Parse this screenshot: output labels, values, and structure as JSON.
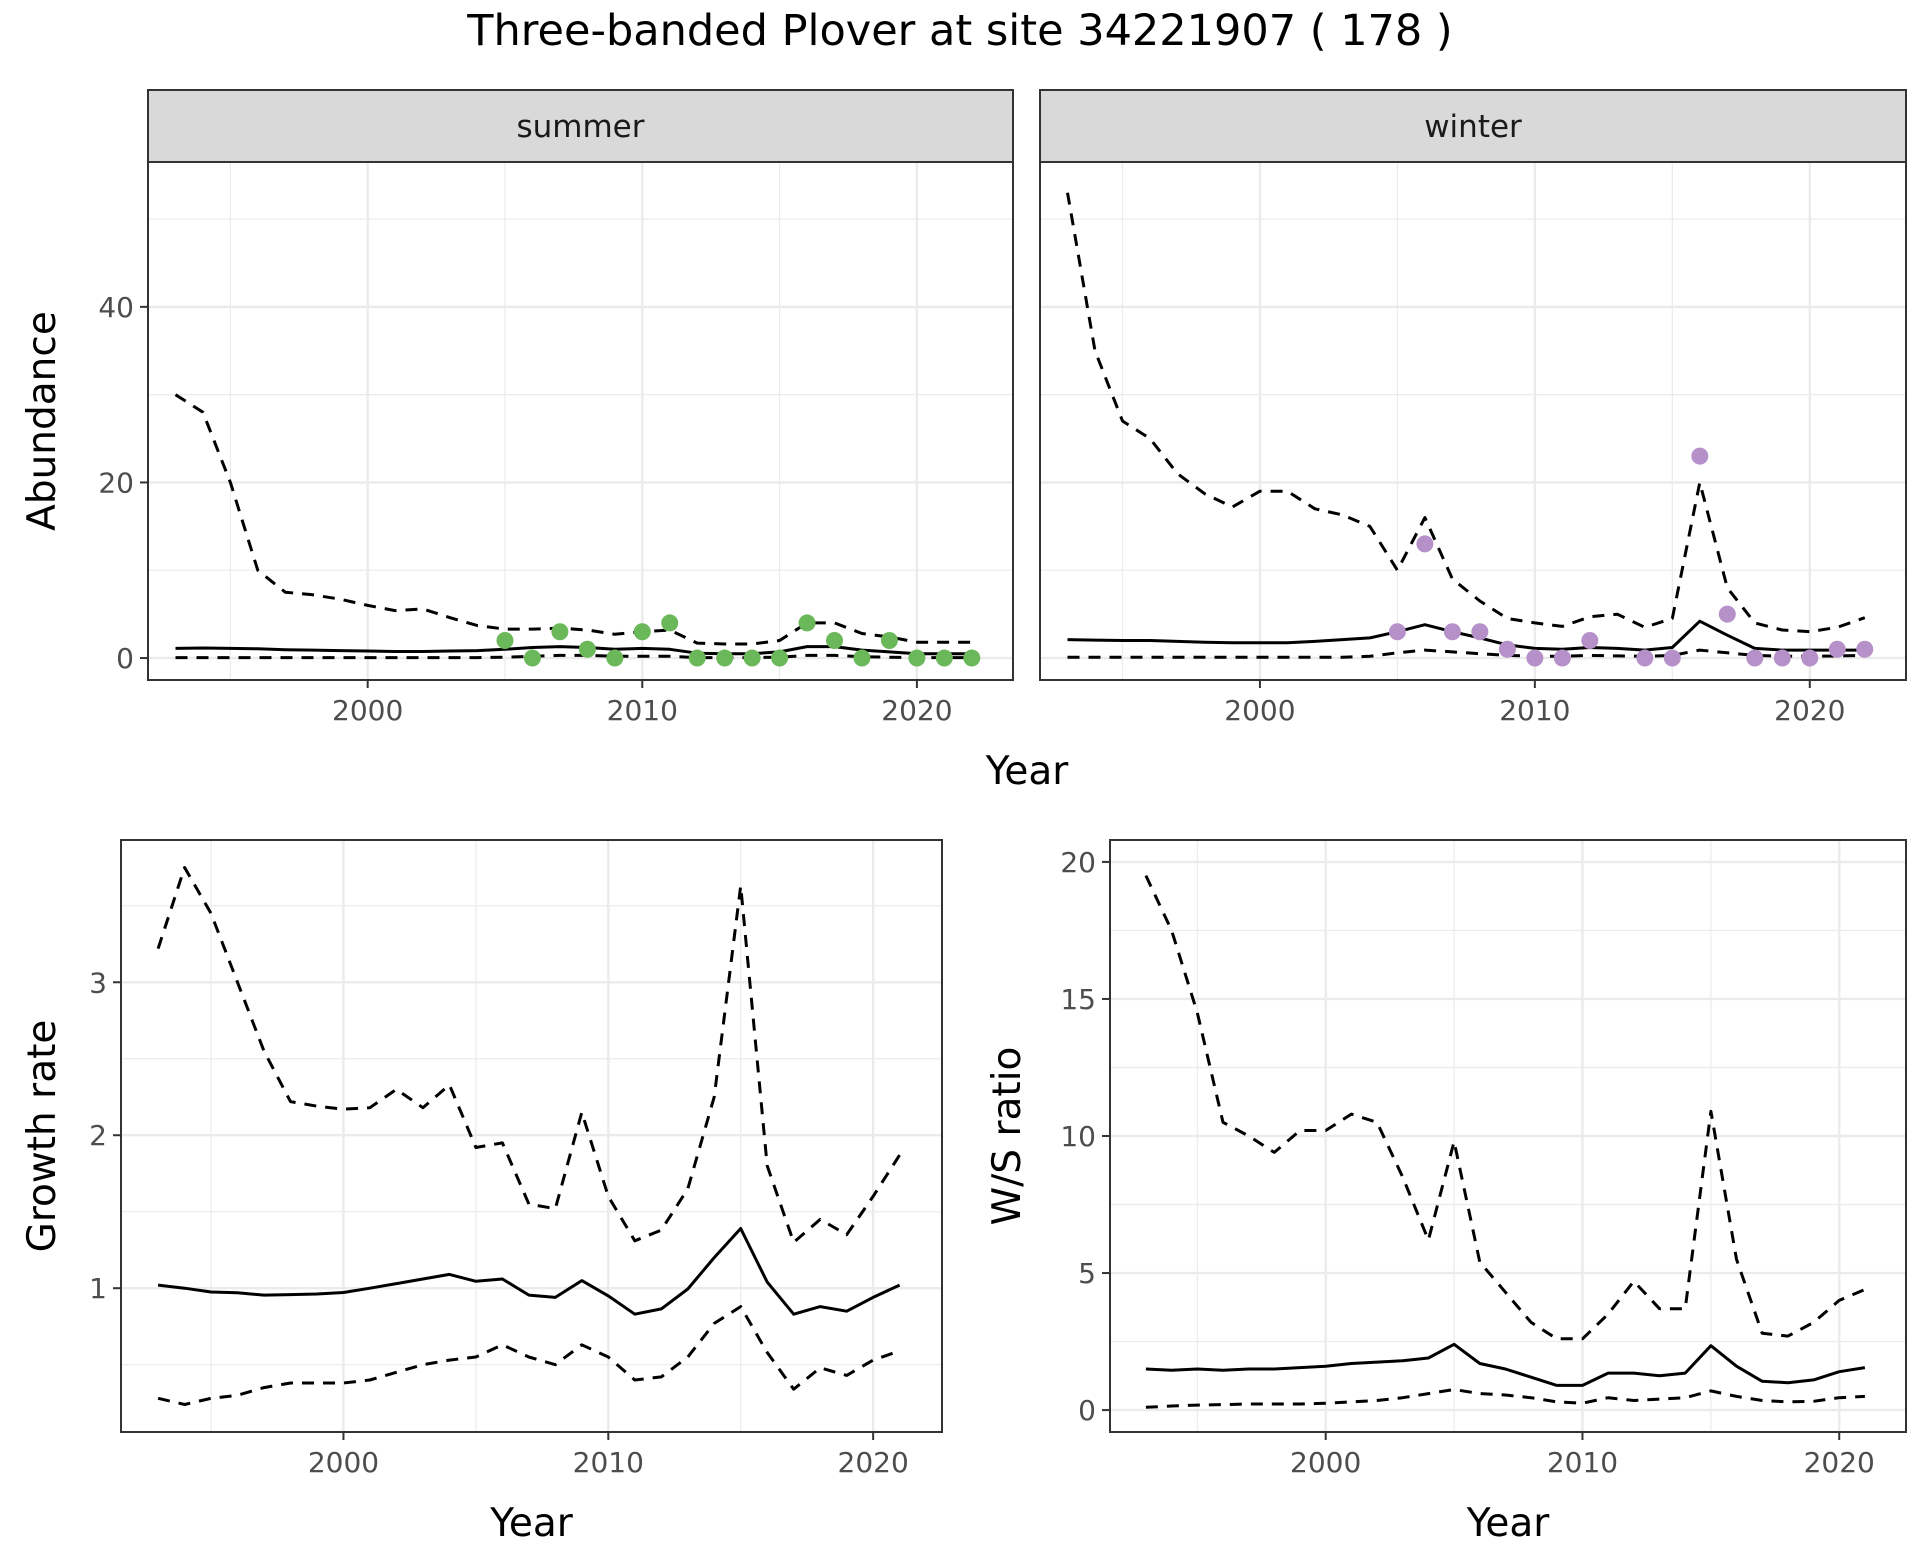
{
  "figure": {
    "title": "Three-banded Plover at site 34221907 ( 178 )",
    "colors": {
      "summer_points": "#6ab859",
      "winter_points": "#b690c8",
      "lines": "#000000",
      "strip": "#d9d9d9",
      "grid": "#ebebeb"
    }
  },
  "chart_data": [
    {
      "type": "line",
      "facet": "summer",
      "xlabel": "Year",
      "ylabel": "Abundance",
      "xlim": [
        1992,
        2023.5
      ],
      "ylim": [
        -2.5,
        56.5
      ],
      "xticks": [
        2000,
        2010,
        2020
      ],
      "yticks": [
        0,
        20,
        40
      ],
      "series": [
        {
          "style": "dashed",
          "x": [
            1993,
            1994,
            1995,
            1996,
            1997,
            1998,
            1999,
            2000,
            2001,
            2002,
            2003,
            2004,
            2005,
            2006,
            2007,
            2008,
            2009,
            2010,
            2011,
            2012,
            2013,
            2014,
            2015,
            2016,
            2017,
            2018,
            2019,
            2020,
            2021,
            2022
          ],
          "values": [
            30,
            28,
            20,
            10,
            7.5,
            7.2,
            6.7,
            6,
            5.4,
            5.6,
            4.6,
            3.7,
            3.3,
            3.3,
            3.4,
            3.2,
            2.7,
            3,
            3.2,
            1.7,
            1.6,
            1.6,
            2,
            4,
            4,
            2.8,
            2.4,
            1.8,
            1.8,
            1.8
          ]
        },
        {
          "style": "solid",
          "x": [
            1993,
            1994,
            1995,
            1996,
            1997,
            1998,
            1999,
            2000,
            2001,
            2002,
            2003,
            2004,
            2005,
            2006,
            2007,
            2008,
            2009,
            2010,
            2011,
            2012,
            2013,
            2014,
            2015,
            2016,
            2017,
            2018,
            2019,
            2020,
            2021,
            2022
          ],
          "values": [
            1.1,
            1.15,
            1.1,
            1.05,
            0.95,
            0.9,
            0.85,
            0.8,
            0.75,
            0.75,
            0.8,
            0.85,
            1,
            1.2,
            1.3,
            1.2,
            1,
            1.1,
            1,
            0.55,
            0.5,
            0.5,
            0.7,
            1.3,
            1.3,
            0.9,
            0.7,
            0.5,
            0.5,
            0.5
          ]
        },
        {
          "style": "dashed",
          "x": [
            1993,
            1994,
            1995,
            1996,
            1997,
            1998,
            1999,
            2000,
            2001,
            2002,
            2003,
            2004,
            2005,
            2006,
            2007,
            2008,
            2009,
            2010,
            2011,
            2012,
            2013,
            2014,
            2015,
            2016,
            2017,
            2018,
            2019,
            2020,
            2021,
            2022
          ],
          "values": [
            0.05,
            0.05,
            0.05,
            0.05,
            0.05,
            0.05,
            0.05,
            0.05,
            0.05,
            0.05,
            0.05,
            0.05,
            0.1,
            0.2,
            0.3,
            0.3,
            0.2,
            0.2,
            0.2,
            0.05,
            0.05,
            0.05,
            0.1,
            0.3,
            0.3,
            0.15,
            0.1,
            0.05,
            0.05,
            0.05
          ]
        }
      ],
      "points": {
        "x": [
          2005,
          2006,
          2007,
          2008,
          2009,
          2010,
          2011,
          2012,
          2013,
          2014,
          2015,
          2016,
          2017,
          2018,
          2019,
          2020,
          2021,
          2022
        ],
        "values": [
          2,
          0,
          3,
          1,
          0,
          3,
          4,
          0,
          0,
          0,
          0,
          4,
          2,
          0,
          2,
          0,
          0,
          0
        ]
      }
    },
    {
      "type": "line",
      "facet": "winter",
      "xlabel": "Year",
      "ylabel": "Abundance",
      "xlim": [
        1992,
        2023.5
      ],
      "ylim": [
        -2.5,
        56.5
      ],
      "xticks": [
        2000,
        2010,
        2020
      ],
      "yticks": [
        0,
        20,
        40
      ],
      "series": [
        {
          "style": "dashed",
          "x": [
            1993,
            1994,
            1995,
            1996,
            1997,
            1998,
            1999,
            2000,
            2001,
            2002,
            2003,
            2004,
            2005,
            2006,
            2007,
            2008,
            2009,
            2010,
            2011,
            2012,
            2013,
            2014,
            2015,
            2016,
            2017,
            2018,
            2019,
            2020,
            2021,
            2022
          ],
          "values": [
            53,
            35,
            27,
            25,
            21,
            18.7,
            17.2,
            19,
            19,
            17,
            16.3,
            15,
            10,
            16,
            9,
            6.5,
            4.5,
            4,
            3.6,
            4.7,
            5,
            3.5,
            4.5,
            20,
            8,
            4,
            3.2,
            3,
            3.5,
            4.6
          ]
        },
        {
          "style": "solid",
          "x": [
            1993,
            1994,
            1995,
            1996,
            1997,
            1998,
            1999,
            2000,
            2001,
            2002,
            2003,
            2004,
            2005,
            2006,
            2007,
            2008,
            2009,
            2010,
            2011,
            2012,
            2013,
            2014,
            2015,
            2016,
            2017,
            2018,
            2019,
            2020,
            2021,
            2022
          ],
          "values": [
            2.1,
            2.05,
            2,
            2,
            1.9,
            1.8,
            1.75,
            1.75,
            1.75,
            1.9,
            2.1,
            2.3,
            3,
            3.8,
            3,
            2.3,
            1.5,
            1.1,
            1,
            1.2,
            1.1,
            0.9,
            1.2,
            4.2,
            2.6,
            1.1,
            0.9,
            0.9,
            0.9,
            0.9
          ]
        },
        {
          "style": "dashed",
          "x": [
            1993,
            1994,
            1995,
            1996,
            1997,
            1998,
            1999,
            2000,
            2001,
            2002,
            2003,
            2004,
            2005,
            2006,
            2007,
            2008,
            2009,
            2010,
            2011,
            2012,
            2013,
            2014,
            2015,
            2016,
            2017,
            2018,
            2019,
            2020,
            2021,
            2022
          ],
          "values": [
            0.1,
            0.1,
            0.1,
            0.1,
            0.1,
            0.1,
            0.1,
            0.1,
            0.1,
            0.1,
            0.1,
            0.2,
            0.6,
            0.9,
            0.7,
            0.5,
            0.3,
            0.2,
            0.2,
            0.3,
            0.25,
            0.2,
            0.3,
            0.9,
            0.6,
            0.3,
            0.2,
            0.2,
            0.25,
            0.3
          ]
        }
      ],
      "points": {
        "x": [
          2005,
          2006,
          2007,
          2008,
          2009,
          2010,
          2011,
          2012,
          2014,
          2015,
          2016,
          2017,
          2018,
          2019,
          2020,
          2021,
          2022
        ],
        "values": [
          3,
          13,
          3,
          3,
          1,
          0,
          0,
          2,
          0,
          0,
          23,
          5,
          0,
          0,
          0,
          1,
          1
        ]
      }
    },
    {
      "type": "line",
      "xlabel": "Year",
      "ylabel": "Growth rate",
      "xlim": [
        1991.6,
        2022.6
      ],
      "ylim": [
        0.06,
        3.93
      ],
      "xticks": [
        2000,
        2010,
        2020
      ],
      "yticks": [
        1,
        2,
        3
      ],
      "series": [
        {
          "style": "dashed",
          "x": [
            1993,
            1994,
            1995,
            1996,
            1997,
            1998,
            1999,
            2000,
            2001,
            2002,
            2003,
            2004,
            2005,
            2006,
            2007,
            2008,
            2009,
            2010,
            2011,
            2012,
            2013,
            2014,
            2015,
            2016,
            2017,
            2018,
            2019,
            2020,
            2021
          ],
          "values": [
            3.22,
            3.75,
            3.45,
            3.0,
            2.55,
            2.22,
            2.19,
            2.17,
            2.18,
            2.3,
            2.18,
            2.33,
            1.92,
            1.95,
            1.55,
            1.52,
            2.15,
            1.6,
            1.31,
            1.38,
            1.65,
            2.25,
            3.63,
            1.8,
            1.3,
            1.45,
            1.35,
            1.6,
            1.87
          ]
        },
        {
          "style": "solid",
          "x": [
            1993,
            1994,
            1995,
            1996,
            1997,
            1998,
            1999,
            2000,
            2001,
            2002,
            2003,
            2004,
            2005,
            2006,
            2007,
            2008,
            2009,
            2010,
            2011,
            2012,
            2013,
            2014,
            2015,
            2016,
            2017,
            2018,
            2019,
            2020,
            2021
          ],
          "values": [
            1.02,
            1.0,
            0.975,
            0.97,
            0.955,
            0.958,
            0.962,
            0.972,
            1.0,
            1.03,
            1.06,
            1.09,
            1.045,
            1.06,
            0.955,
            0.94,
            1.05,
            0.95,
            0.83,
            0.865,
            0.995,
            1.2,
            1.39,
            1.04,
            0.83,
            0.88,
            0.85,
            0.94,
            1.02
          ]
        },
        {
          "style": "dashed",
          "x": [
            1993,
            1994,
            1995,
            1996,
            1997,
            1998,
            1999,
            2000,
            2001,
            2002,
            2003,
            2004,
            2005,
            2006,
            2007,
            2008,
            2009,
            2010,
            2011,
            2012,
            2013,
            2014,
            2015,
            2016,
            2017,
            2018,
            2019,
            2020,
            2021
          ],
          "values": [
            0.28,
            0.24,
            0.28,
            0.3,
            0.35,
            0.38,
            0.38,
            0.38,
            0.4,
            0.45,
            0.5,
            0.53,
            0.55,
            0.63,
            0.55,
            0.5,
            0.63,
            0.55,
            0.4,
            0.42,
            0.55,
            0.77,
            0.88,
            0.58,
            0.34,
            0.48,
            0.43,
            0.53,
            0.59
          ]
        }
      ]
    },
    {
      "type": "line",
      "xlabel": "Year",
      "ylabel": "W/S ratio",
      "xlim": [
        1991.6,
        2022.6
      ],
      "ylim": [
        -0.8,
        20.8
      ],
      "xticks": [
        2000,
        2010,
        2020
      ],
      "yticks": [
        0,
        5,
        10,
        15,
        20
      ],
      "series": [
        {
          "style": "dashed",
          "x": [
            1993,
            1994,
            1995,
            1996,
            1997,
            1998,
            1999,
            2000,
            2001,
            2002,
            2003,
            2004,
            2005,
            2006,
            2007,
            2008,
            2009,
            2010,
            2011,
            2012,
            2013,
            2014,
            2015,
            2016,
            2017,
            2018,
            2019,
            2020,
            2021
          ],
          "values": [
            19.5,
            17.5,
            14.5,
            10.5,
            10,
            9.4,
            10.2,
            10.2,
            10.8,
            10.5,
            8.5,
            6.2,
            9.8,
            5.4,
            4.3,
            3.2,
            2.6,
            2.6,
            3.5,
            4.7,
            3.7,
            3.7,
            10.9,
            5.5,
            2.8,
            2.7,
            3.2,
            4.0,
            4.4
          ]
        },
        {
          "style": "solid",
          "x": [
            1993,
            1994,
            1995,
            1996,
            1997,
            1998,
            1999,
            2000,
            2001,
            2002,
            2003,
            2004,
            2005,
            2006,
            2007,
            2008,
            2009,
            2010,
            2011,
            2012,
            2013,
            2014,
            2015,
            2016,
            2017,
            2018,
            2019,
            2020,
            2021
          ],
          "values": [
            1.5,
            1.45,
            1.5,
            1.45,
            1.5,
            1.5,
            1.55,
            1.6,
            1.7,
            1.75,
            1.8,
            1.9,
            2.4,
            1.7,
            1.5,
            1.2,
            0.9,
            0.9,
            1.35,
            1.35,
            1.25,
            1.35,
            2.35,
            1.6,
            1.05,
            1.0,
            1.1,
            1.4,
            1.55
          ]
        },
        {
          "style": "dashed",
          "x": [
            1993,
            1994,
            1995,
            1996,
            1997,
            1998,
            1999,
            2000,
            2001,
            2002,
            2003,
            2004,
            2005,
            2006,
            2007,
            2008,
            2009,
            2010,
            2011,
            2012,
            2013,
            2014,
            2015,
            2016,
            2017,
            2018,
            2019,
            2020,
            2021
          ],
          "values": [
            0.1,
            0.15,
            0.18,
            0.2,
            0.22,
            0.22,
            0.22,
            0.25,
            0.3,
            0.35,
            0.45,
            0.6,
            0.75,
            0.6,
            0.55,
            0.45,
            0.3,
            0.25,
            0.45,
            0.35,
            0.4,
            0.45,
            0.7,
            0.5,
            0.35,
            0.3,
            0.32,
            0.45,
            0.5
          ]
        }
      ]
    }
  ]
}
